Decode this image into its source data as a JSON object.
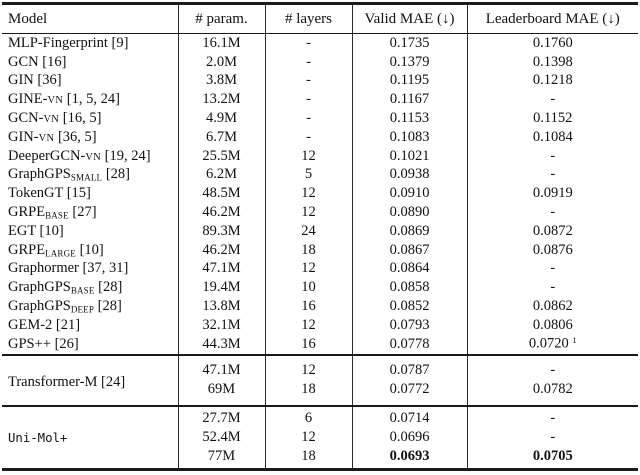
{
  "page": {
    "background": "#ffffff",
    "text_color": "#111111",
    "rule_color": "#1a1a1a"
  },
  "table": {
    "columns": [
      "Model",
      "# param.",
      "# layers",
      "Valid MAE (↓)",
      "Leaderboard MAE (↓)"
    ],
    "footnote_marker": "1",
    "sections": [
      {
        "rows": [
          {
            "model": [
              "MLP-Fingerprint [9]"
            ],
            "cells": [
              [
                "16.1M"
              ],
              [
                "-"
              ],
              [
                "0.1735"
              ],
              [
                "0.1760"
              ]
            ]
          },
          {
            "model": [
              "GCN [16]"
            ],
            "cells": [
              [
                "2.0M"
              ],
              [
                "-"
              ],
              [
                "0.1379"
              ],
              [
                "0.1398"
              ]
            ]
          },
          {
            "model": [
              "GIN [36]"
            ],
            "cells": [
              [
                "3.8M"
              ],
              [
                "-"
              ],
              [
                "0.1195"
              ],
              [
                "0.1218"
              ]
            ]
          },
          {
            "model": [
              "GINE-",
              {
                "t": "VN",
                "s": "sc"
              },
              " [1, 5, 24]"
            ],
            "cells": [
              [
                "13.2M"
              ],
              [
                "-"
              ],
              [
                "0.1167"
              ],
              [
                "-"
              ]
            ]
          },
          {
            "model": [
              "GCN-",
              {
                "t": "VN",
                "s": "sc"
              },
              " [16, 5]"
            ],
            "cells": [
              [
                "4.9M"
              ],
              [
                "-"
              ],
              [
                "0.1153"
              ],
              [
                "0.1152"
              ]
            ]
          },
          {
            "model": [
              "GIN-",
              {
                "t": "VN",
                "s": "sc"
              },
              " [36, 5]"
            ],
            "cells": [
              [
                "6.7M"
              ],
              [
                "-"
              ],
              [
                "0.1083"
              ],
              [
                "0.1084"
              ]
            ]
          },
          {
            "model": [
              "DeeperGCN-",
              {
                "t": "VN",
                "s": "sc"
              },
              " [19, 24]"
            ],
            "cells": [
              [
                "25.5M"
              ],
              [
                "12"
              ],
              [
                "0.1021"
              ],
              [
                "-"
              ]
            ]
          },
          {
            "model": [
              "GraphGPS",
              {
                "t": "SMALL",
                "s": "sub"
              },
              " [28]"
            ],
            "cells": [
              [
                "6.2M"
              ],
              [
                "5"
              ],
              [
                "0.0938"
              ],
              [
                "-"
              ]
            ]
          },
          {
            "model": [
              "TokenGT [15]"
            ],
            "cells": [
              [
                "48.5M"
              ],
              [
                "12"
              ],
              [
                "0.0910"
              ],
              [
                "0.0919"
              ]
            ]
          },
          {
            "model": [
              "GRPE",
              {
                "t": "BASE",
                "s": "sub"
              },
              " [27]"
            ],
            "cells": [
              [
                "46.2M"
              ],
              [
                "12"
              ],
              [
                "0.0890"
              ],
              [
                "-"
              ]
            ]
          },
          {
            "model": [
              "EGT [10]"
            ],
            "cells": [
              [
                "89.3M"
              ],
              [
                "24"
              ],
              [
                "0.0869"
              ],
              [
                "0.0872"
              ]
            ]
          },
          {
            "model": [
              "GRPE",
              {
                "t": "LARGE",
                "s": "sub"
              },
              " [10]"
            ],
            "cells": [
              [
                "46.2M"
              ],
              [
                "18"
              ],
              [
                "0.0867"
              ],
              [
                "0.0876"
              ]
            ]
          },
          {
            "model": [
              "Graphormer [37, 31]"
            ],
            "cells": [
              [
                "47.1M"
              ],
              [
                "12"
              ],
              [
                "0.0864"
              ],
              [
                "-"
              ]
            ]
          },
          {
            "model": [
              "GraphGPS",
              {
                "t": "BASE",
                "s": "sub"
              },
              " [28]"
            ],
            "cells": [
              [
                "19.4M"
              ],
              [
                "10"
              ],
              [
                "0.0858"
              ],
              [
                "-"
              ]
            ]
          },
          {
            "model": [
              "GraphGPS",
              {
                "t": "DEEP",
                "s": "sub"
              },
              " [28]"
            ],
            "cells": [
              [
                "13.8M"
              ],
              [
                "16"
              ],
              [
                "0.0852"
              ],
              [
                "0.0862"
              ]
            ]
          },
          {
            "model": [
              "GEM-2 [21]"
            ],
            "cells": [
              [
                "32.1M"
              ],
              [
                "12"
              ],
              [
                "0.0793"
              ],
              [
                "0.0806"
              ]
            ]
          },
          {
            "model": [
              "GPS++ [26]"
            ],
            "cells": [
              [
                "44.3M"
              ],
              [
                "16"
              ],
              [
                "0.0778"
              ],
              [
                "0.0720 ",
                {
                  "t": "1",
                  "s": "sup"
                }
              ]
            ]
          }
        ]
      },
      {
        "model": [
          "Transformer-M [24]"
        ],
        "rows": [
          {
            "cells": [
              [
                "47.1M"
              ],
              [
                "12"
              ],
              [
                "0.0787"
              ],
              [
                "-"
              ]
            ]
          },
          {
            "cells": [
              [
                "69M"
              ],
              [
                "18"
              ],
              [
                "0.0772"
              ],
              [
                "0.0782"
              ]
            ]
          }
        ]
      },
      {
        "model": [
          {
            "t": "Uni-Mol+",
            "s": "mono"
          }
        ],
        "rows": [
          {
            "cells": [
              [
                "27.7M"
              ],
              [
                "6"
              ],
              [
                "0.0714"
              ],
              [
                "-"
              ]
            ]
          },
          {
            "cells": [
              [
                "52.4M"
              ],
              [
                "12"
              ],
              [
                "0.0696"
              ],
              [
                "-"
              ]
            ]
          },
          {
            "cells": [
              [
                "77M"
              ],
              [
                "18"
              ],
              [
                {
                  "t": "0.0693",
                  "s": "b"
                }
              ],
              [
                {
                  "t": "0.0705",
                  "s": "b"
                }
              ]
            ]
          }
        ]
      }
    ]
  }
}
